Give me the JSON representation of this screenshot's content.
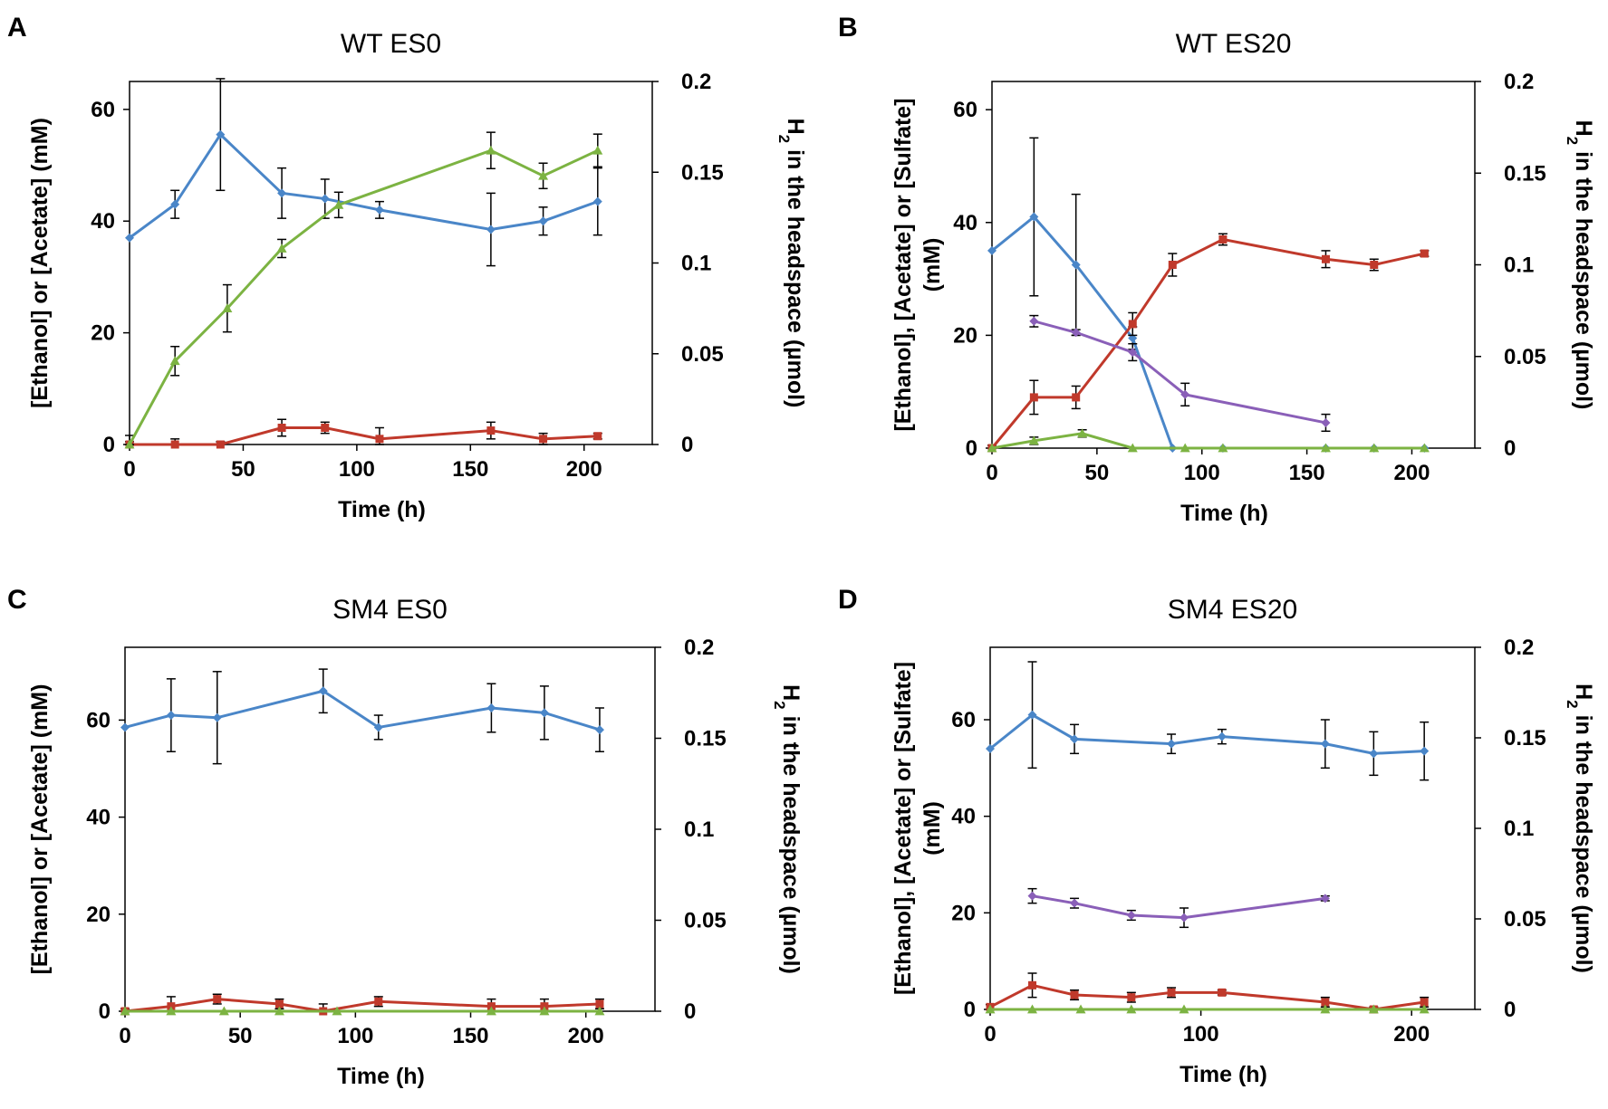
{
  "colors": {
    "ethanol": "#4a86c8",
    "acetate": "#c0392b",
    "sulfate": "#8a5fb8",
    "h2": "#7cb342"
  },
  "chart_data": [
    {
      "type": "line",
      "panel": "A",
      "title": "WT ES0",
      "xlabel": "Time (h)",
      "ylabel": "[Ethanol] or  [Acetate] (mM)",
      "y2label_main": "H",
      "y2label_sub": "2",
      "y2label_rest": " in the headspace (µmol)",
      "xlim": [
        0,
        230
      ],
      "ylim": [
        0,
        65
      ],
      "y2lim": [
        0,
        0.2
      ],
      "xticks": [
        0,
        50,
        100,
        150,
        200
      ],
      "yticks": [
        0,
        20,
        40,
        60
      ],
      "y2ticks": [
        0,
        0.05,
        0.1,
        0.15,
        0.2
      ],
      "xtick_labels": [
        "0",
        "50",
        "100",
        "150",
        "200"
      ],
      "ytick_labels": [
        "0",
        "20",
        "40",
        "60"
      ],
      "y2tick_labels": [
        "0",
        "0.05",
        "0.1",
        "0.15",
        "0.2"
      ],
      "series": [
        {
          "name": "Ethanol",
          "color": "#4a86c8",
          "marker": "diamond",
          "axis": "left",
          "x": [
            0,
            20,
            40,
            67,
            86,
            110,
            159,
            182,
            206
          ],
          "y": [
            37,
            43,
            55.5,
            45,
            44,
            42,
            38.5,
            40,
            43.5
          ],
          "err": [
            0,
            2.5,
            10,
            4.5,
            3.5,
            1.5,
            6.5,
            2.5,
            6
          ]
        },
        {
          "name": "Acetate",
          "color": "#c0392b",
          "marker": "square",
          "axis": "left",
          "x": [
            0,
            20,
            40,
            67,
            86,
            110,
            159,
            182,
            206
          ],
          "y": [
            0,
            0,
            0,
            3,
            3,
            1,
            2.5,
            1,
            1.5
          ],
          "err": [
            0.5,
            1,
            0.5,
            1.5,
            1,
            2,
            1.5,
            1,
            0.5
          ]
        },
        {
          "name": "H2",
          "color": "#7cb342",
          "marker": "triangle",
          "axis": "right",
          "x": [
            0,
            20,
            43,
            67,
            92,
            159,
            182,
            206
          ],
          "y": [
            0,
            0.046,
            0.075,
            0.108,
            0.132,
            0.162,
            0.148,
            0.162
          ],
          "err": [
            0.005,
            0.008,
            0.013,
            0.005,
            0.007,
            0.01,
            0.007,
            0.009
          ]
        }
      ]
    },
    {
      "type": "line",
      "panel": "B",
      "title": "WT ES20",
      "xlabel": "Time (h)",
      "ylabel": "[Ethanol], [Acetate] or [Sulfate]",
      "ylabel2": "(mM)",
      "y2label_main": "H",
      "y2label_sub": "2",
      "y2label_rest": " in the headspace (µmol)",
      "xlim": [
        0,
        230
      ],
      "ylim": [
        0,
        65
      ],
      "y2lim": [
        0,
        0.2
      ],
      "xticks": [
        0,
        50,
        100,
        150,
        200
      ],
      "yticks": [
        0,
        20,
        40,
        60
      ],
      "y2ticks": [
        0,
        0.05,
        0.1,
        0.15,
        0.2
      ],
      "xtick_labels": [
        "0",
        "50",
        "100",
        "150",
        "200"
      ],
      "ytick_labels": [
        "0",
        "20",
        "40",
        "60"
      ],
      "y2tick_labels": [
        "0",
        "0.05",
        "0.1",
        "0.15",
        "0.2"
      ],
      "series": [
        {
          "name": "Ethanol",
          "color": "#4a86c8",
          "marker": "diamond",
          "axis": "left",
          "x": [
            0,
            20,
            40,
            67,
            86,
            110,
            159,
            182,
            206
          ],
          "y": [
            35,
            41,
            32.5,
            19.5,
            0,
            0,
            0,
            0,
            0
          ],
          "err": [
            0,
            14,
            12.5,
            2,
            0,
            0,
            0,
            0,
            0
          ]
        },
        {
          "name": "Acetate",
          "color": "#c0392b",
          "marker": "square",
          "axis": "left",
          "x": [
            0,
            20,
            40,
            67,
            86,
            110,
            159,
            182,
            206
          ],
          "y": [
            0,
            9,
            9,
            22,
            32.5,
            37,
            33.5,
            32.5,
            34.5
          ],
          "err": [
            0.5,
            3,
            2,
            2,
            2,
            1,
            1.5,
            1,
            0.5
          ]
        },
        {
          "name": "Sulfate",
          "color": "#8a5fb8",
          "marker": "diamond",
          "axis": "left",
          "x": [
            20,
            40,
            67,
            92,
            159
          ],
          "y": [
            22.5,
            20.5,
            17,
            9.5,
            4.5
          ],
          "err": [
            1,
            0.5,
            1.5,
            2,
            1.5
          ]
        },
        {
          "name": "H2",
          "color": "#7cb342",
          "marker": "triangle",
          "axis": "right",
          "x": [
            0,
            20,
            43,
            67,
            92,
            110,
            159,
            182,
            206
          ],
          "y": [
            0,
            0.004,
            0.008,
            0,
            0,
            0,
            0,
            0,
            0
          ],
          "err": [
            0,
            0.002,
            0.002,
            0,
            0,
            0,
            0,
            0,
            0
          ]
        }
      ]
    },
    {
      "type": "line",
      "panel": "C",
      "title": "SM4 ES0",
      "xlabel": "Time (h)",
      "ylabel": "[Ethanol] or [Acetate] (mM)",
      "y2label_main": "H",
      "y2label_sub": "2",
      "y2label_rest": " in the headspace (µmol)",
      "xlim": [
        0,
        230
      ],
      "ylim": [
        0,
        75
      ],
      "y2lim": [
        0,
        0.2
      ],
      "xticks": [
        0,
        50,
        100,
        150,
        200
      ],
      "yticks": [
        0,
        20,
        40,
        60
      ],
      "y2ticks": [
        0,
        0.05,
        0.1,
        0.15,
        0.2
      ],
      "xtick_labels": [
        "0",
        "50",
        "100",
        "150",
        "200"
      ],
      "ytick_labels": [
        "0",
        "20",
        "40",
        "60"
      ],
      "y2tick_labels": [
        "0",
        "0.05",
        "0.1",
        "0.15",
        "0.2"
      ],
      "series": [
        {
          "name": "Ethanol",
          "color": "#4a86c8",
          "marker": "diamond",
          "axis": "left",
          "x": [
            0,
            20,
            40,
            86,
            110,
            159,
            182,
            206
          ],
          "y": [
            58.5,
            61,
            60.5,
            66,
            58.5,
            62.5,
            61.5,
            58
          ],
          "err": [
            0,
            7.5,
            9.5,
            4.5,
            2.5,
            5,
            5.5,
            4.5
          ]
        },
        {
          "name": "Acetate",
          "color": "#c0392b",
          "marker": "square",
          "axis": "left",
          "x": [
            0,
            20,
            40,
            67,
            86,
            110,
            159,
            182,
            206
          ],
          "y": [
            0,
            1,
            2.5,
            1.5,
            0,
            2,
            1,
            1,
            1.5
          ],
          "err": [
            0.5,
            2,
            1,
            1,
            1.5,
            1,
            1.5,
            1.5,
            1
          ]
        },
        {
          "name": "H2",
          "color": "#7cb342",
          "marker": "triangle",
          "axis": "right",
          "x": [
            0,
            20,
            43,
            67,
            92,
            159,
            182,
            206
          ],
          "y": [
            0,
            0,
            0,
            0,
            0,
            0,
            0,
            0
          ],
          "err": [
            0,
            0,
            0,
            0,
            0,
            0,
            0,
            0
          ]
        }
      ]
    },
    {
      "type": "line",
      "panel": "D",
      "title": "SM4 ES20",
      "xlabel": "Time (h)",
      "ylabel": "[Ethanol], [Acetate] or [Sulfate]",
      "ylabel2": "(mM)",
      "y2label_main": "H",
      "y2label_sub": "2",
      "y2label_rest": " in the headspace (µmol)",
      "xlim": [
        0,
        230
      ],
      "ylim": [
        0,
        75
      ],
      "y2lim": [
        0,
        0.2
      ],
      "xticks": [
        0,
        100,
        200
      ],
      "yticks": [
        0,
        20,
        40,
        60
      ],
      "y2ticks": [
        0,
        0.05,
        0.1,
        0.15,
        0.2
      ],
      "xtick_labels": [
        "0",
        "100",
        "200"
      ],
      "ytick_labels": [
        "0",
        "20",
        "40",
        "60"
      ],
      "y2tick_labels": [
        "0",
        "0.05",
        "0.1",
        "0.15",
        "0.2"
      ],
      "series": [
        {
          "name": "Ethanol",
          "color": "#4a86c8",
          "marker": "diamond",
          "axis": "left",
          "x": [
            0,
            20,
            40,
            86,
            110,
            159,
            182,
            206
          ],
          "y": [
            54,
            61,
            56,
            55,
            56.5,
            55,
            53,
            53.5
          ],
          "err": [
            0,
            11,
            3,
            2,
            1.5,
            5,
            4.5,
            6
          ]
        },
        {
          "name": "Acetate",
          "color": "#c0392b",
          "marker": "square",
          "axis": "left",
          "x": [
            0,
            20,
            40,
            67,
            86,
            110,
            159,
            182,
            206
          ],
          "y": [
            0.5,
            5,
            3,
            2.5,
            3.5,
            3.5,
            1.5,
            0,
            1.5
          ],
          "err": [
            0.5,
            2.5,
            1,
            1,
            1,
            0.5,
            1,
            0.5,
            1
          ]
        },
        {
          "name": "Sulfate",
          "color": "#8a5fb8",
          "marker": "diamond",
          "axis": "left",
          "x": [
            20,
            40,
            67,
            92,
            159
          ],
          "y": [
            23.5,
            22,
            19.5,
            19,
            23
          ],
          "err": [
            1.5,
            1,
            1,
            2,
            0.5
          ]
        },
        {
          "name": "H2",
          "color": "#7cb342",
          "marker": "triangle",
          "axis": "right",
          "x": [
            0,
            20,
            43,
            67,
            92,
            159,
            182,
            206
          ],
          "y": [
            0,
            0,
            0,
            0,
            0,
            0,
            0,
            0
          ],
          "err": [
            0,
            0,
            0,
            0,
            0,
            0,
            0,
            0
          ]
        }
      ]
    }
  ]
}
